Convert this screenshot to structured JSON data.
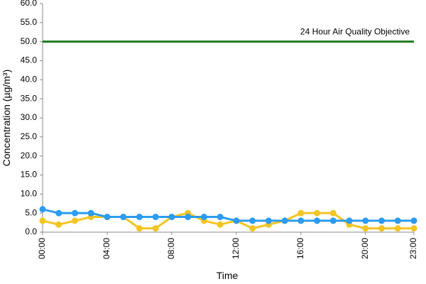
{
  "chart_data": {
    "type": "line",
    "x_label": "Time",
    "y_label": "Concentration (µg/m³)",
    "categories": [
      "00:00",
      null,
      null,
      null,
      "04:00",
      null,
      null,
      null,
      "08:00",
      null,
      null,
      null,
      "12:00",
      null,
      null,
      null,
      "16:00",
      null,
      null,
      null,
      "20:00",
      null,
      null,
      "23:00"
    ],
    "series": [
      {
        "color": "#f2c523",
        "values": [
          3,
          2,
          3,
          4,
          4,
          4,
          1,
          1,
          4,
          5,
          3,
          2,
          3,
          1,
          2,
          3,
          5,
          5,
          5,
          2,
          1,
          1,
          1,
          1
        ]
      },
      {
        "color": "#2d9bef",
        "values": [
          6,
          5,
          5,
          5,
          4,
          4,
          4,
          4,
          4,
          4,
          4,
          4,
          3,
          3,
          3,
          3,
          3,
          3,
          3,
          3,
          3,
          3,
          3,
          3
        ]
      }
    ],
    "threshold": {
      "value": 50,
      "label": "24 Hour Air Quality Objective",
      "color": "#1f7a1f"
    },
    "ylim": [
      0,
      60
    ],
    "yticks": [
      {
        "value": 0,
        "label": "0.0"
      },
      {
        "value": 5,
        "label": "5.0"
      },
      {
        "value": 10,
        "label": "10.0"
      },
      {
        "value": 15,
        "label": "15.0"
      },
      {
        "value": 20,
        "label": "20.0"
      },
      {
        "value": 25,
        "label": "25.0"
      },
      {
        "value": 30,
        "label": "30.0"
      },
      {
        "value": 35,
        "label": "35.0"
      },
      {
        "value": 40,
        "label": "40.0"
      },
      {
        "value": 45,
        "label": "45.0"
      },
      {
        "value": 50,
        "label": "50.0"
      },
      {
        "value": 55,
        "label": "55.0"
      },
      {
        "value": 60,
        "label": "60.0"
      }
    ]
  }
}
